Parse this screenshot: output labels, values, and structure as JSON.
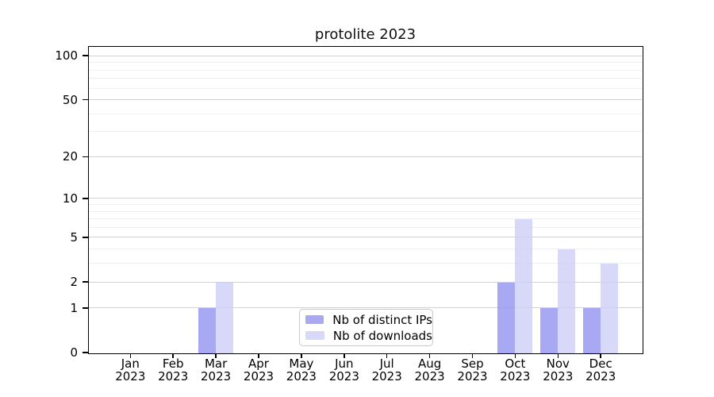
{
  "chart_data": {
    "type": "bar",
    "title": "protolite 2023",
    "categories": [
      "Jan",
      "Feb",
      "Mar",
      "Apr",
      "May",
      "Jun",
      "Jul",
      "Aug",
      "Sep",
      "Oct",
      "Nov",
      "Dec"
    ],
    "x_year": "2023",
    "series": [
      {
        "key": "distinct-ips",
        "name": "Nb of distinct IPs",
        "color": "#a9a9f2",
        "color_rgba": "rgba(147,147,240,0.8)",
        "values": [
          0,
          0,
          1,
          0,
          0,
          0,
          0,
          0,
          0,
          2,
          1,
          1
        ]
      },
      {
        "key": "downloads",
        "name": "Nb of downloads",
        "color": "#d8d8f8",
        "color_rgba": "rgba(206,206,247,0.8)",
        "values": [
          0,
          0,
          2,
          0,
          0,
          0,
          0,
          0,
          0,
          7,
          4,
          3
        ]
      }
    ],
    "y_ticks": [
      0,
      1,
      2,
      5,
      10,
      20,
      50,
      100
    ],
    "y_minor_gridlines": [
      3,
      4,
      6,
      7,
      8,
      9,
      30,
      40,
      60,
      70,
      80,
      90
    ],
    "y_scale": "log1p",
    "ylim": [
      0,
      115
    ],
    "xlabel": "",
    "ylabel": "",
    "grid": "horizontal",
    "legend_position": "lower center"
  }
}
